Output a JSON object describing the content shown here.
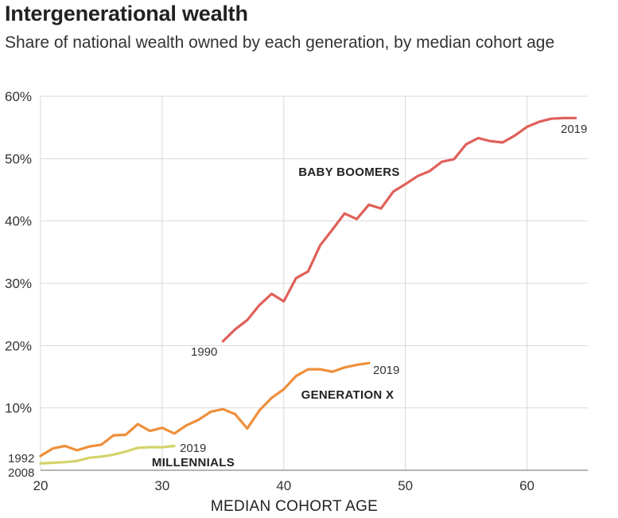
{
  "chart_data": {
    "type": "line",
    "title": "Intergenerational wealth",
    "subtitle": "Share of national wealth owned by each generation, by median cohort age",
    "xlabel": "MEDIAN COHORT AGE",
    "ylabel": "",
    "xlim": [
      20,
      65
    ],
    "ylim": [
      0,
      60
    ],
    "x_ticks": [
      20,
      30,
      40,
      50,
      60
    ],
    "y_ticks": [
      {
        "value": 10,
        "label": "10%"
      },
      {
        "value": 20,
        "label": "20%"
      },
      {
        "value": 30,
        "label": "30%"
      },
      {
        "value": 40,
        "label": "40%"
      },
      {
        "value": 50,
        "label": "50%"
      },
      {
        "value": 60,
        "label": "60%"
      }
    ],
    "grid": true,
    "series": [
      {
        "name": "BABY BOOMERS",
        "color": "#e0605a",
        "start_label": "1990",
        "end_label": "2019",
        "x": [
          35,
          36,
          37,
          38,
          39,
          40,
          41,
          42,
          43,
          44,
          45,
          46,
          47,
          48,
          49,
          50,
          51,
          52,
          53,
          54,
          55,
          56,
          57,
          58,
          59,
          60,
          61,
          62,
          63,
          64
        ],
        "values": [
          20.7,
          22.6,
          24.1,
          26.5,
          28.3,
          27.1,
          30.8,
          31.9,
          36.1,
          38.6,
          41.2,
          40.3,
          42.6,
          42.0,
          44.7,
          45.9,
          47.2,
          48.0,
          49.5,
          49.9,
          52.3,
          53.3,
          52.8,
          52.6,
          53.7,
          55.1,
          55.9,
          56.4,
          56.5,
          56.5
        ]
      },
      {
        "name": "GENERATION X",
        "color": "#ee8f3b",
        "start_label": "1992",
        "end_label": "2019",
        "x": [
          20,
          21,
          22,
          23,
          24,
          25,
          26,
          27,
          28,
          29,
          30,
          31,
          32,
          33,
          34,
          35,
          36,
          37,
          38,
          39,
          40,
          41,
          42,
          43,
          44,
          45,
          46,
          47
        ],
        "values": [
          2.3,
          3.5,
          3.9,
          3.2,
          3.8,
          4.1,
          5.6,
          5.7,
          7.4,
          6.3,
          6.8,
          5.9,
          7.2,
          8.1,
          9.4,
          9.8,
          9.0,
          6.7,
          9.6,
          11.6,
          13.0,
          15.1,
          16.2,
          16.2,
          15.8,
          16.5,
          16.9,
          17.2
        ]
      },
      {
        "name": "MILLENNIALS",
        "color": "#d4d36a",
        "start_label": "2008",
        "end_label": "2019",
        "x": [
          20,
          21,
          22,
          23,
          24,
          25,
          26,
          27,
          28,
          29,
          30,
          31
        ],
        "values": [
          1.1,
          1.2,
          1.3,
          1.5,
          2.0,
          2.2,
          2.5,
          3.0,
          3.6,
          3.7,
          3.7,
          3.9
        ]
      }
    ]
  }
}
